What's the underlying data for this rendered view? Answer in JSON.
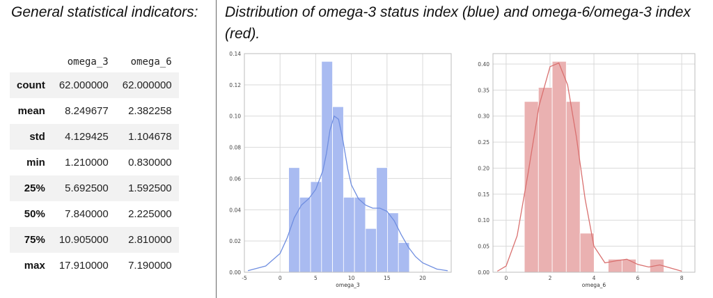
{
  "left_heading": "General statistical indicators:",
  "right_heading": "Distribution of omega-3 status index (blue) and omega-6/omega-3 index (red).",
  "table": {
    "columns": [
      "omega_3",
      "omega_6"
    ],
    "rows": [
      {
        "label": "count",
        "values": [
          "62.000000",
          "62.000000"
        ]
      },
      {
        "label": "mean",
        "values": [
          "8.249677",
          "2.382258"
        ]
      },
      {
        "label": "std",
        "values": [
          "4.129425",
          "1.104678"
        ]
      },
      {
        "label": "min",
        "values": [
          "1.210000",
          "0.830000"
        ]
      },
      {
        "label": "25%",
        "values": [
          "5.692500",
          "1.592500"
        ]
      },
      {
        "label": "50%",
        "values": [
          "7.840000",
          "2.225000"
        ]
      },
      {
        "label": "75%",
        "values": [
          "10.905000",
          "2.810000"
        ]
      },
      {
        "label": "max",
        "values": [
          "17.910000",
          "7.190000"
        ]
      }
    ]
  },
  "chart_data": [
    {
      "type": "bar",
      "subtype": "histogram_with_kde",
      "xlabel": "omega_3",
      "ylabel": "",
      "xlim": [
        -5,
        24
      ],
      "ylim": [
        0,
        0.14
      ],
      "xticks": [
        -5,
        0,
        5,
        10,
        15,
        20
      ],
      "yticks": [
        0.0,
        0.02,
        0.04,
        0.06,
        0.08,
        0.1,
        0.12,
        0.14
      ],
      "ytick_labels": [
        "0.00",
        "0.02",
        "0.04",
        "0.06",
        "0.08",
        "0.10",
        "0.12",
        "0.14"
      ],
      "grid": true,
      "color": "#6f8ee0",
      "bar_color": "#a9bbf1",
      "bins": [
        {
          "x0": 1.21,
          "x1": 2.74,
          "value": 0.067
        },
        {
          "x0": 2.74,
          "x1": 4.28,
          "value": 0.048
        },
        {
          "x0": 4.28,
          "x1": 5.82,
          "value": 0.058
        },
        {
          "x0": 5.82,
          "x1": 7.36,
          "value": 0.135
        },
        {
          "x0": 7.36,
          "x1": 8.9,
          "value": 0.106
        },
        {
          "x0": 8.9,
          "x1": 10.44,
          "value": 0.048
        },
        {
          "x0": 10.44,
          "x1": 11.98,
          "value": 0.048
        },
        {
          "x0": 11.98,
          "x1": 13.52,
          "value": 0.028
        },
        {
          "x0": 13.52,
          "x1": 15.06,
          "value": 0.067
        },
        {
          "x0": 15.06,
          "x1": 16.6,
          "value": 0.038
        },
        {
          "x0": 16.6,
          "x1": 18.14,
          "value": 0.019
        }
      ],
      "kde": {
        "x": [
          -4.5,
          -2,
          0,
          1,
          2,
          3,
          4,
          5,
          6,
          6.5,
          7,
          7.6,
          8.2,
          8.8,
          9.5,
          10,
          11,
          12,
          13,
          14,
          15,
          16,
          17,
          18,
          19,
          20,
          22,
          23.5
        ],
        "y": [
          0.001,
          0.004,
          0.012,
          0.022,
          0.035,
          0.043,
          0.047,
          0.053,
          0.065,
          0.076,
          0.091,
          0.1,
          0.098,
          0.085,
          0.066,
          0.056,
          0.047,
          0.043,
          0.041,
          0.041,
          0.039,
          0.033,
          0.024,
          0.016,
          0.01,
          0.006,
          0.002,
          0.001
        ]
      }
    },
    {
      "type": "bar",
      "subtype": "histogram_with_kde",
      "xlabel": "omega_6",
      "ylabel": "",
      "xlim": [
        -0.6,
        8.6
      ],
      "ylim": [
        0,
        0.42
      ],
      "xticks": [
        0,
        2,
        4,
        6,
        8
      ],
      "yticks": [
        0.0,
        0.05,
        0.1,
        0.15,
        0.2,
        0.25,
        0.3,
        0.35,
        0.4
      ],
      "ytick_labels": [
        "0.00",
        "0.05",
        "0.10",
        "0.15",
        "0.20",
        "0.25",
        "0.30",
        "0.35",
        "0.40"
      ],
      "grid": true,
      "color": "#d9706f",
      "bar_color": "#eab1b1",
      "bins": [
        {
          "x0": 0.83,
          "x1": 1.47,
          "value": 0.328
        },
        {
          "x0": 1.47,
          "x1": 2.1,
          "value": 0.355
        },
        {
          "x0": 2.1,
          "x1": 2.74,
          "value": 0.405
        },
        {
          "x0": 2.74,
          "x1": 3.37,
          "value": 0.328
        },
        {
          "x0": 3.37,
          "x1": 4.01,
          "value": 0.075
        },
        {
          "x0": 4.01,
          "x1": 4.65,
          "value": 0.0
        },
        {
          "x0": 4.65,
          "x1": 5.28,
          "value": 0.025
        },
        {
          "x0": 5.28,
          "x1": 5.92,
          "value": 0.025
        },
        {
          "x0": 5.92,
          "x1": 6.55,
          "value": 0.0
        },
        {
          "x0": 6.55,
          "x1": 7.19,
          "value": 0.025
        }
      ],
      "kde": {
        "x": [
          -0.4,
          0,
          0.5,
          1.0,
          1.5,
          2.0,
          2.4,
          2.8,
          3.2,
          3.6,
          4.0,
          4.5,
          5.0,
          5.5,
          6.0,
          6.5,
          7.0,
          7.5,
          8.0
        ],
        "y": [
          0.002,
          0.012,
          0.07,
          0.19,
          0.32,
          0.395,
          0.402,
          0.36,
          0.26,
          0.14,
          0.05,
          0.018,
          0.022,
          0.025,
          0.015,
          0.01,
          0.014,
          0.008,
          0.002
        ]
      }
    }
  ]
}
